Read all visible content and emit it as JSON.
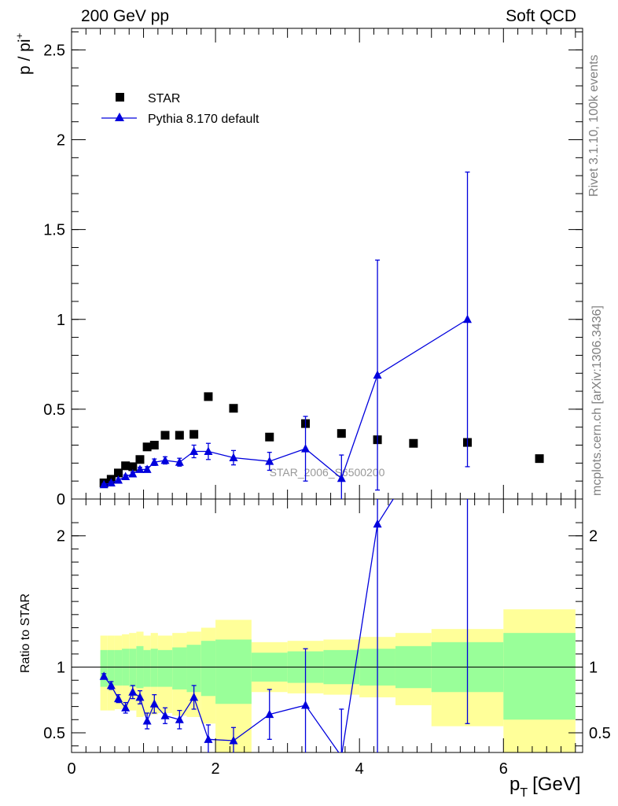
{
  "header": {
    "left": "200 GeV pp",
    "right": "Soft QCD"
  },
  "side_labels": {
    "rivet": "Rivet 3.1.10,  100k events",
    "source": "mcplots.cern.ch [arXiv:1306.3436]"
  },
  "watermark": "STAR_2006_S6500200",
  "colors": {
    "mc": "#0000dd",
    "data": "#000000",
    "band_inner": "#99ff99",
    "band_outer": "#ffff99"
  },
  "chart_data": [
    {
      "type": "scatter",
      "panel": "main",
      "ylabel": "p / pi",
      "ylabel_sup": "+",
      "xlim": [
        0,
        7.1
      ],
      "ylim": [
        0,
        2.62
      ],
      "yticks": [
        0,
        0.5,
        1,
        1.5,
        2,
        2.5
      ],
      "ytick_labels": [
        "0",
        "0.5",
        "1",
        "1.5",
        "2",
        "2.5"
      ],
      "legend": {
        "position": "top-left",
        "entries": [
          "STAR",
          "Pythia 8.170 default"
        ]
      },
      "series": [
        {
          "name": "STAR",
          "marker": "square",
          "x": [
            0.45,
            0.55,
            0.65,
            0.75,
            0.85,
            0.95,
            1.05,
            1.15,
            1.3,
            1.5,
            1.7,
            1.9,
            2.25,
            2.75,
            3.25,
            3.75,
            4.25,
            4.75,
            5.5,
            6.5
          ],
          "y": [
            0.09,
            0.11,
            0.145,
            0.185,
            0.18,
            0.22,
            0.29,
            0.3,
            0.355,
            0.355,
            0.36,
            0.57,
            0.505,
            0.345,
            0.42,
            0.365,
            0.33,
            0.31,
            0.315,
            0.225
          ]
        },
        {
          "name": "Pythia 8.170 default",
          "marker": "triangle",
          "x": [
            0.45,
            0.55,
            0.65,
            0.75,
            0.85,
            0.95,
            1.05,
            1.15,
            1.3,
            1.5,
            1.7,
            1.9,
            2.25,
            2.75,
            3.25,
            3.75,
            4.25,
            5.5
          ],
          "y": [
            0.08,
            0.09,
            0.105,
            0.125,
            0.14,
            0.165,
            0.165,
            0.205,
            0.215,
            0.205,
            0.265,
            0.265,
            0.23,
            0.21,
            0.28,
            0.115,
            0.69,
            1.0
          ],
          "yerr": [
            0.005,
            0.006,
            0.007,
            0.009,
            0.01,
            0.012,
            0.015,
            0.018,
            0.02,
            0.022,
            0.035,
            0.045,
            0.04,
            0.05,
            0.18,
            0.13,
            0.64,
            0.82
          ]
        }
      ]
    },
    {
      "type": "line",
      "panel": "ratio",
      "ylabel": "Ratio to STAR",
      "xlabel": "p",
      "xlabel_sub": "T",
      "xlabel_unit": "[GeV]",
      "xlim": [
        0,
        7.1
      ],
      "ylim": [
        0.35,
        2.28
      ],
      "xticks": [
        0,
        2,
        4,
        6
      ],
      "xtick_labels": [
        "0",
        "2",
        "4",
        "6"
      ],
      "yticks": [
        0.5,
        1,
        2
      ],
      "ytick_labels": [
        "0.5",
        "1",
        "2"
      ],
      "reference_line": 1,
      "bands": [
        {
          "x0": 0.4,
          "x1": 0.5,
          "inner": [
            0.85,
            1.13
          ],
          "outer": [
            0.67,
            1.24
          ]
        },
        {
          "x0": 0.5,
          "x1": 0.6,
          "inner": [
            0.86,
            1.13
          ],
          "outer": [
            0.67,
            1.24
          ]
        },
        {
          "x0": 0.6,
          "x1": 0.7,
          "inner": [
            0.86,
            1.13
          ],
          "outer": [
            0.68,
            1.24
          ]
        },
        {
          "x0": 0.7,
          "x1": 0.8,
          "inner": [
            0.86,
            1.14
          ],
          "outer": [
            0.69,
            1.25
          ]
        },
        {
          "x0": 0.8,
          "x1": 0.9,
          "inner": [
            0.85,
            1.14
          ],
          "outer": [
            0.67,
            1.26
          ]
        },
        {
          "x0": 0.9,
          "x1": 1.0,
          "inner": [
            0.84,
            1.16
          ],
          "outer": [
            0.62,
            1.27
          ]
        },
        {
          "x0": 1.0,
          "x1": 1.1,
          "inner": [
            0.85,
            1.13
          ],
          "outer": [
            0.63,
            1.24
          ]
        },
        {
          "x0": 1.1,
          "x1": 1.2,
          "inner": [
            0.85,
            1.14
          ],
          "outer": [
            0.64,
            1.26
          ]
        },
        {
          "x0": 1.2,
          "x1": 1.4,
          "inner": [
            0.85,
            1.13
          ],
          "outer": [
            0.65,
            1.24
          ]
        },
        {
          "x0": 1.4,
          "x1": 1.6,
          "inner": [
            0.83,
            1.15
          ],
          "outer": [
            0.63,
            1.26
          ]
        },
        {
          "x0": 1.6,
          "x1": 1.8,
          "inner": [
            0.81,
            1.17
          ],
          "outer": [
            0.62,
            1.27
          ]
        },
        {
          "x0": 1.8,
          "x1": 2.0,
          "inner": [
            0.78,
            1.2
          ],
          "outer": [
            0.57,
            1.3
          ]
        },
        {
          "x0": 2.0,
          "x1": 2.5,
          "inner": [
            0.72,
            1.21
          ],
          "outer": [
            0.35,
            1.36
          ]
        },
        {
          "x0": 2.5,
          "x1": 3.0,
          "inner": [
            0.89,
            1.11
          ],
          "outer": [
            0.81,
            1.19
          ]
        },
        {
          "x0": 3.0,
          "x1": 3.5,
          "inner": [
            0.88,
            1.12
          ],
          "outer": [
            0.8,
            1.2
          ]
        },
        {
          "x0": 3.5,
          "x1": 4.0,
          "inner": [
            0.87,
            1.13
          ],
          "outer": [
            0.79,
            1.21
          ]
        },
        {
          "x0": 4.0,
          "x1": 4.5,
          "inner": [
            0.86,
            1.14
          ],
          "outer": [
            0.77,
            1.23
          ]
        },
        {
          "x0": 4.5,
          "x1": 5.0,
          "inner": [
            0.84,
            1.16
          ],
          "outer": [
            0.71,
            1.26
          ]
        },
        {
          "x0": 5.0,
          "x1": 6.0,
          "inner": [
            0.81,
            1.19
          ],
          "outer": [
            0.55,
            1.29
          ]
        },
        {
          "x0": 6.0,
          "x1": 7.0,
          "inner": [
            0.6,
            1.26
          ],
          "outer": [
            0.35,
            1.44
          ]
        }
      ],
      "series": [
        {
          "name": "Pythia 8.170 default",
          "marker": "triangle",
          "x": [
            0.45,
            0.55,
            0.65,
            0.75,
            0.85,
            0.95,
            1.05,
            1.15,
            1.3,
            1.5,
            1.7,
            1.9,
            2.25,
            2.75,
            3.25,
            3.75,
            4.25,
            5.5
          ],
          "y": [
            0.93,
            0.86,
            0.76,
            0.69,
            0.81,
            0.77,
            0.59,
            0.72,
            0.63,
            0.6,
            0.77,
            0.45,
            0.44,
            0.64,
            0.71,
            0.32,
            2.09,
            3.17
          ],
          "yerr": [
            0.02,
            0.03,
            0.03,
            0.04,
            0.05,
            0.05,
            0.06,
            0.07,
            0.06,
            0.07,
            0.09,
            0.11,
            0.1,
            0.19,
            0.43,
            0.36,
            1.9,
            2.6
          ]
        }
      ]
    }
  ]
}
